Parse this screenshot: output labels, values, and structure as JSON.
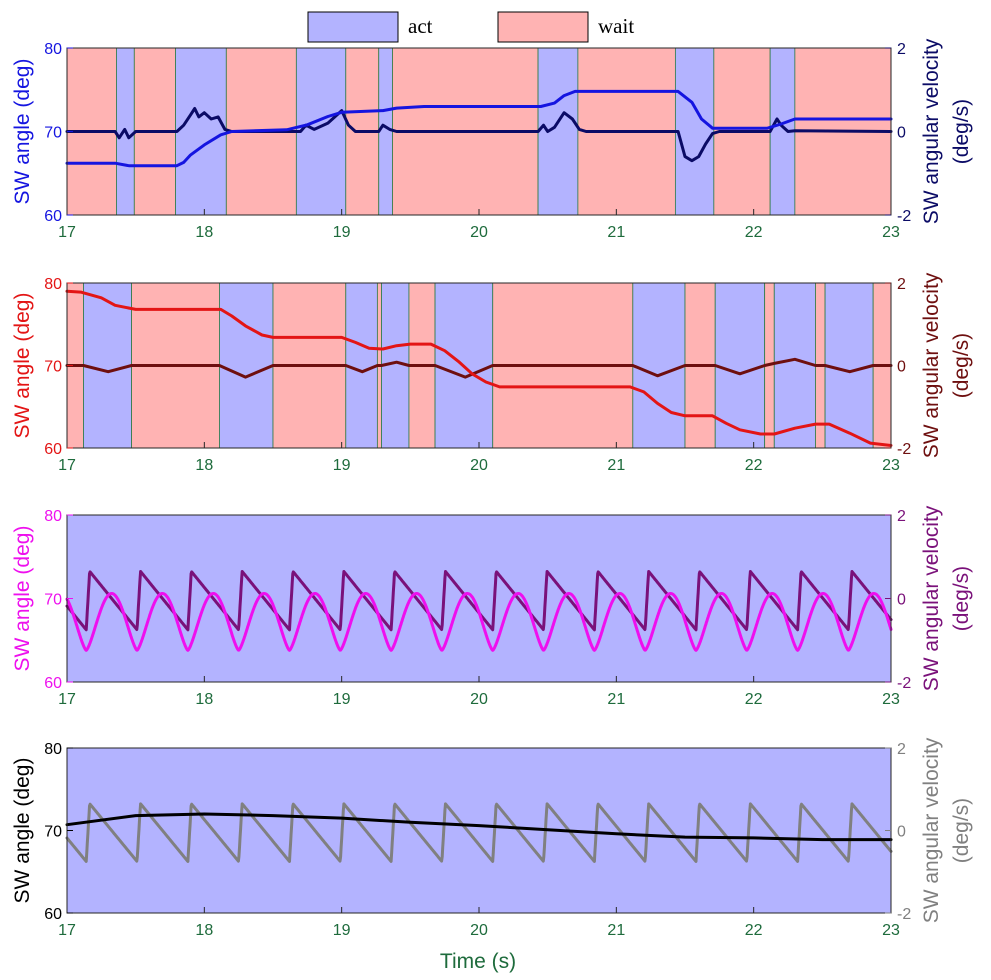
{
  "legend": {
    "items": [
      {
        "label": "act",
        "color": "#b3b3ff"
      },
      {
        "label": "wait",
        "color": "#ffb3b3"
      }
    ]
  },
  "chart_data": [
    {
      "type": "line",
      "xlabel": "",
      "ylabel_left": "SW angle (deg)",
      "ylabel_right": [
        "SW angular velocity",
        "(deg/s)"
      ],
      "xlim": [
        17,
        23
      ],
      "ylim_left": [
        60,
        80
      ],
      "ylim_right": [
        -2,
        2
      ],
      "xticks": [
        "17",
        "18",
        "19",
        "20",
        "21",
        "22",
        "23"
      ],
      "yticks_left": [
        "60",
        "70",
        "80"
      ],
      "yticks_right": [
        "-2",
        "0",
        "2"
      ],
      "colors": {
        "angle": "#1515e0",
        "velocity": "#0b0b66",
        "left_axis": "#1515e0",
        "right_axis": "#0b0b66"
      },
      "background": "regions",
      "regions": [
        {
          "label": "wait",
          "x0": 17.0,
          "x1": 17.36
        },
        {
          "label": "act",
          "x0": 17.36,
          "x1": 17.49
        },
        {
          "label": "wait",
          "x0": 17.49,
          "x1": 17.79
        },
        {
          "label": "act",
          "x0": 17.79,
          "x1": 18.16
        },
        {
          "label": "wait",
          "x0": 18.16,
          "x1": 18.67
        },
        {
          "label": "act",
          "x0": 18.67,
          "x1": 19.03
        },
        {
          "label": "wait",
          "x0": 19.03,
          "x1": 19.27
        },
        {
          "label": "act",
          "x0": 19.27,
          "x1": 19.37
        },
        {
          "label": "wait",
          "x0": 19.37,
          "x1": 20.43
        },
        {
          "label": "act",
          "x0": 20.43,
          "x1": 20.72
        },
        {
          "label": "wait",
          "x0": 20.72,
          "x1": 21.43
        },
        {
          "label": "act",
          "x0": 21.43,
          "x1": 21.71
        },
        {
          "label": "wait",
          "x0": 21.71,
          "x1": 22.12
        },
        {
          "label": "act",
          "x0": 22.12,
          "x1": 22.3
        },
        {
          "label": "wait",
          "x0": 22.3,
          "x1": 23.0
        }
      ],
      "series": [
        {
          "axis": "left",
          "role": "angle",
          "points": [
            [
              17.0,
              66.2
            ],
            [
              17.35,
              66.2
            ],
            [
              17.45,
              65.9
            ],
            [
              17.8,
              65.9
            ],
            [
              17.85,
              66.3
            ],
            [
              17.9,
              67.2
            ],
            [
              18.0,
              68.4
            ],
            [
              18.12,
              69.6
            ],
            [
              18.2,
              70.0
            ],
            [
              18.6,
              70.2
            ],
            [
              18.75,
              70.8
            ],
            [
              18.9,
              71.8
            ],
            [
              19.0,
              72.3
            ],
            [
              19.3,
              72.5
            ],
            [
              19.4,
              72.8
            ],
            [
              19.6,
              73.0
            ],
            [
              20.45,
              73.0
            ],
            [
              20.55,
              73.4
            ],
            [
              20.62,
              74.3
            ],
            [
              20.7,
              74.8
            ],
            [
              21.45,
              74.8
            ],
            [
              21.55,
              73.5
            ],
            [
              21.62,
              71.5
            ],
            [
              21.7,
              70.4
            ],
            [
              22.1,
              70.4
            ],
            [
              22.2,
              70.9
            ],
            [
              22.3,
              71.5
            ],
            [
              23.0,
              71.5
            ]
          ]
        },
        {
          "axis": "right",
          "role": "velocity",
          "points": [
            [
              17.0,
              0.0
            ],
            [
              17.35,
              0.0
            ],
            [
              17.38,
              -0.15
            ],
            [
              17.42,
              0.05
            ],
            [
              17.45,
              -0.15
            ],
            [
              17.5,
              0.0
            ],
            [
              17.8,
              0.0
            ],
            [
              17.85,
              0.15
            ],
            [
              17.9,
              0.4
            ],
            [
              17.93,
              0.55
            ],
            [
              17.96,
              0.35
            ],
            [
              18.0,
              0.45
            ],
            [
              18.05,
              0.3
            ],
            [
              18.1,
              0.35
            ],
            [
              18.15,
              0.05
            ],
            [
              18.2,
              0.0
            ],
            [
              18.7,
              0.0
            ],
            [
              18.74,
              0.15
            ],
            [
              18.8,
              0.05
            ],
            [
              18.9,
              0.2
            ],
            [
              19.0,
              0.5
            ],
            [
              19.05,
              0.15
            ],
            [
              19.1,
              0.0
            ],
            [
              19.27,
              0.0
            ],
            [
              19.3,
              0.15
            ],
            [
              19.35,
              0.05
            ],
            [
              19.4,
              0.0
            ],
            [
              20.43,
              0.0
            ],
            [
              20.47,
              0.15
            ],
            [
              20.5,
              0.0
            ],
            [
              20.55,
              0.1
            ],
            [
              20.62,
              0.45
            ],
            [
              20.68,
              0.3
            ],
            [
              20.73,
              0.05
            ],
            [
              20.78,
              0.0
            ],
            [
              21.45,
              0.0
            ],
            [
              21.5,
              -0.6
            ],
            [
              21.55,
              -0.7
            ],
            [
              21.6,
              -0.6
            ],
            [
              21.65,
              -0.3
            ],
            [
              21.7,
              -0.05
            ],
            [
              21.75,
              0.0
            ],
            [
              22.12,
              0.0
            ],
            [
              22.17,
              0.3
            ],
            [
              22.2,
              0.15
            ],
            [
              22.25,
              0.0
            ],
            [
              22.3,
              0.02
            ],
            [
              23.0,
              0.0
            ]
          ]
        }
      ]
    },
    {
      "type": "line",
      "xlabel": "",
      "ylabel_left": "SW angle (deg)",
      "ylabel_right": [
        "SW angular velocity",
        "(deg/s)"
      ],
      "xlim": [
        17,
        23
      ],
      "ylim_left": [
        60,
        80
      ],
      "ylim_right": [
        -2,
        2
      ],
      "xticks": [
        "17",
        "18",
        "19",
        "20",
        "21",
        "22",
        "23"
      ],
      "yticks_left": [
        "60",
        "70",
        "80"
      ],
      "yticks_right": [
        "-2",
        "0",
        "2"
      ],
      "colors": {
        "angle": "#e31515",
        "velocity": "#6e0f0f",
        "left_axis": "#e31515",
        "right_axis": "#6e0f0f"
      },
      "background": "regions",
      "regions": [
        {
          "label": "wait",
          "x0": 17.0,
          "x1": 17.12
        },
        {
          "label": "act",
          "x0": 17.12,
          "x1": 17.47
        },
        {
          "label": "wait",
          "x0": 17.47,
          "x1": 18.11
        },
        {
          "label": "act",
          "x0": 18.11,
          "x1": 18.5
        },
        {
          "label": "wait",
          "x0": 18.5,
          "x1": 19.03
        },
        {
          "label": "act",
          "x0": 19.03,
          "x1": 19.26
        },
        {
          "label": "wait",
          "x0": 19.26,
          "x1": 19.29
        },
        {
          "label": "act",
          "x0": 19.29,
          "x1": 19.49
        },
        {
          "label": "wait",
          "x0": 19.49,
          "x1": 19.68
        },
        {
          "label": "act",
          "x0": 19.68,
          "x1": 20.1
        },
        {
          "label": "wait",
          "x0": 20.1,
          "x1": 21.12
        },
        {
          "label": "act",
          "x0": 21.12,
          "x1": 21.5
        },
        {
          "label": "wait",
          "x0": 21.5,
          "x1": 21.72
        },
        {
          "label": "act",
          "x0": 21.72,
          "x1": 22.08
        },
        {
          "label": "wait",
          "x0": 22.08,
          "x1": 22.15
        },
        {
          "label": "act",
          "x0": 22.15,
          "x1": 22.45
        },
        {
          "label": "wait",
          "x0": 22.45,
          "x1": 22.52
        },
        {
          "label": "act",
          "x0": 22.52,
          "x1": 22.87
        },
        {
          "label": "wait",
          "x0": 22.87,
          "x1": 23.0
        }
      ],
      "series": [
        {
          "axis": "left",
          "role": "angle",
          "points": [
            [
              17.0,
              79.0
            ],
            [
              17.1,
              78.9
            ],
            [
              17.25,
              78.2
            ],
            [
              17.35,
              77.3
            ],
            [
              17.5,
              76.8
            ],
            [
              18.12,
              76.8
            ],
            [
              18.2,
              76.0
            ],
            [
              18.3,
              74.8
            ],
            [
              18.42,
              73.7
            ],
            [
              18.5,
              73.4
            ],
            [
              19.0,
              73.4
            ],
            [
              19.1,
              72.8
            ],
            [
              19.2,
              72.1
            ],
            [
              19.3,
              72.0
            ],
            [
              19.4,
              72.4
            ],
            [
              19.5,
              72.6
            ],
            [
              19.65,
              72.6
            ],
            [
              19.75,
              71.8
            ],
            [
              19.85,
              70.5
            ],
            [
              19.95,
              69.0
            ],
            [
              20.05,
              68.0
            ],
            [
              20.15,
              67.4
            ],
            [
              21.1,
              67.4
            ],
            [
              21.2,
              66.8
            ],
            [
              21.3,
              65.4
            ],
            [
              21.4,
              64.3
            ],
            [
              21.5,
              63.9
            ],
            [
              21.7,
              63.9
            ],
            [
              21.8,
              63.0
            ],
            [
              21.9,
              62.2
            ],
            [
              22.05,
              61.7
            ],
            [
              22.15,
              61.7
            ],
            [
              22.3,
              62.4
            ],
            [
              22.45,
              62.9
            ],
            [
              22.55,
              62.9
            ],
            [
              22.7,
              61.8
            ],
            [
              22.85,
              60.6
            ],
            [
              23.0,
              60.3
            ]
          ]
        },
        {
          "axis": "right",
          "role": "velocity",
          "points": [
            [
              17.0,
              0.0
            ],
            [
              17.12,
              0.0
            ],
            [
              17.3,
              -0.15
            ],
            [
              17.47,
              0.0
            ],
            [
              18.11,
              0.0
            ],
            [
              18.3,
              -0.28
            ],
            [
              18.5,
              0.0
            ],
            [
              19.03,
              0.0
            ],
            [
              19.15,
              -0.15
            ],
            [
              19.26,
              0.0
            ],
            [
              19.29,
              0.0
            ],
            [
              19.4,
              0.08
            ],
            [
              19.49,
              0.0
            ],
            [
              19.68,
              0.0
            ],
            [
              19.9,
              -0.28
            ],
            [
              20.1,
              0.0
            ],
            [
              21.12,
              0.0
            ],
            [
              21.3,
              -0.25
            ],
            [
              21.5,
              0.0
            ],
            [
              21.72,
              0.0
            ],
            [
              21.9,
              -0.2
            ],
            [
              22.08,
              0.0
            ],
            [
              22.15,
              0.05
            ],
            [
              22.3,
              0.15
            ],
            [
              22.45,
              0.0
            ],
            [
              22.52,
              0.0
            ],
            [
              22.7,
              -0.15
            ],
            [
              22.87,
              0.0
            ],
            [
              23.0,
              0.0
            ]
          ]
        }
      ]
    },
    {
      "type": "line",
      "xlabel": "",
      "ylabel_left": "SW angle (deg)",
      "ylabel_right": [
        "SW angular velocity",
        "(deg/s)"
      ],
      "xlim": [
        17,
        23
      ],
      "ylim_left": [
        60,
        80
      ],
      "ylim_right": [
        -2,
        2
      ],
      "xticks": [
        "17",
        "18",
        "19",
        "20",
        "21",
        "22",
        "23"
      ],
      "yticks_left": [
        "60",
        "70",
        "80"
      ],
      "yticks_right": [
        "-2",
        "0",
        "2"
      ],
      "colors": {
        "angle": "#ee10ee",
        "velocity": "#7a117a",
        "left_axis": "#ee10ee",
        "right_axis": "#7a117a"
      },
      "background": "act",
      "oscillation": {
        "period": 0.37,
        "phase_start": 16.77,
        "angle_center": 67.2,
        "angle_amplitude": 3.4,
        "velocity_min": -0.75,
        "velocity_peak": 0.65
      },
      "series": [
        {
          "axis": "left",
          "role": "angle",
          "points": "periodic"
        },
        {
          "axis": "right",
          "role": "velocity",
          "points": "periodic"
        }
      ]
    },
    {
      "type": "line",
      "xlabel": "Time (s)",
      "ylabel_left": "SW angle (deg)",
      "ylabel_right": [
        "SW angular velocity",
        "(deg/s)"
      ],
      "xlim": [
        17,
        23
      ],
      "ylim_left": [
        60,
        80
      ],
      "ylim_right": [
        -2,
        2
      ],
      "xticks": [
        "17",
        "18",
        "19",
        "20",
        "21",
        "22",
        "23"
      ],
      "yticks_left": [
        "60",
        "70",
        "80"
      ],
      "yticks_right": [
        "-2",
        "0",
        "2"
      ],
      "colors": {
        "angle": "#000000",
        "velocity": "#808080",
        "left_axis": "#000000",
        "right_axis": "#808080"
      },
      "background": "act",
      "oscillation": {
        "period": 0.37,
        "phase_start": 16.77,
        "velocity_min": -0.75,
        "velocity_peak": 0.65
      },
      "series": [
        {
          "axis": "left",
          "role": "angle",
          "points": [
            [
              17.0,
              70.7
            ],
            [
              17.5,
              71.8
            ],
            [
              18.0,
              72.0
            ],
            [
              18.5,
              71.8
            ],
            [
              19.0,
              71.5
            ],
            [
              19.5,
              71.0
            ],
            [
              20.0,
              70.6
            ],
            [
              20.5,
              70.1
            ],
            [
              21.0,
              69.6
            ],
            [
              21.5,
              69.2
            ],
            [
              22.0,
              69.1
            ],
            [
              22.5,
              68.9
            ],
            [
              23.0,
              68.9
            ]
          ]
        },
        {
          "axis": "right",
          "role": "velocity",
          "points": "periodic"
        }
      ]
    }
  ]
}
